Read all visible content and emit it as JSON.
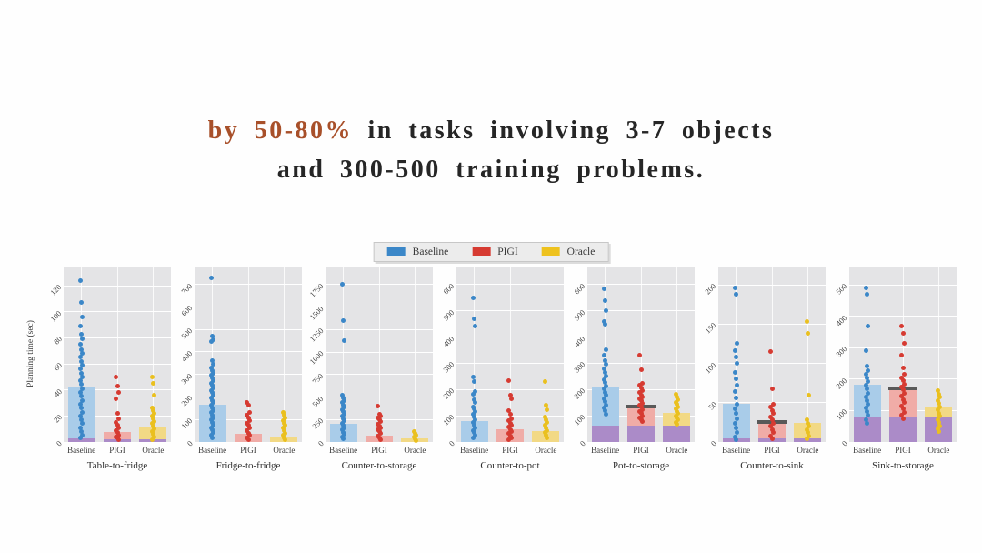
{
  "headline": {
    "accent": "by 50-80%",
    "rest_line1": "in tasks involving 3-7 objects",
    "line2": "and 300-500 training problems.",
    "accent_color": "#a8502a",
    "text_color": "#262626"
  },
  "legend": {
    "items": [
      {
        "label": "Baseline",
        "color": "#3b87c8"
      },
      {
        "label": "PIGI",
        "color": "#d63b32"
      },
      {
        "label": "Oracle",
        "color": "#eec21e"
      }
    ]
  },
  "colors": {
    "bar_fill": {
      "Baseline": "#a9cce9",
      "PIGI": "#f0aca7",
      "Oracle": "#f2d985"
    },
    "point": {
      "Baseline": "#3b87c8",
      "PIGI": "#d63b32",
      "Oracle": "#eac01f"
    },
    "purple_fill": "#ab8bc8",
    "cap": "#595959",
    "plot_bg": "#e4e4e6",
    "grid": "#ffffff"
  },
  "chart_data": [
    {
      "type": "bar",
      "title": "Table-to-fridge",
      "ylabel": "Planning time (sec)",
      "categories": [
        "Baseline",
        "PIGI",
        "Oracle"
      ],
      "yticks": [
        0,
        20,
        40,
        60,
        80,
        100,
        120
      ],
      "ylim": [
        0,
        134
      ],
      "series": [
        {
          "name": "Baseline",
          "bar": 42,
          "purple": 3,
          "cap": false,
          "points": [
            124,
            107,
            96,
            89,
            83,
            79,
            75,
            71,
            68,
            65,
            62,
            59,
            56,
            53,
            50,
            47,
            44,
            41,
            38,
            35,
            32,
            29,
            26,
            23,
            20,
            17,
            14,
            11,
            8,
            5,
            3
          ]
        },
        {
          "name": "PIGI",
          "bar": 8,
          "purple": 2,
          "cap": false,
          "points": [
            50,
            43,
            38,
            33,
            22,
            18,
            15,
            13,
            11,
            9,
            7,
            5,
            4,
            3,
            2
          ]
        },
        {
          "name": "Oracle",
          "bar": 12,
          "purple": 2,
          "cap": false,
          "points": [
            50,
            45,
            36,
            26,
            24,
            22,
            20,
            18,
            16,
            14,
            12,
            10,
            8,
            6,
            4,
            2
          ]
        }
      ]
    },
    {
      "type": "bar",
      "title": "Fridge-to-fridge",
      "ylabel": "",
      "categories": [
        "Baseline",
        "PIGI",
        "Oracle"
      ],
      "yticks": [
        0,
        100,
        200,
        300,
        400,
        500,
        600,
        700
      ],
      "ylim": [
        0,
        775
      ],
      "series": [
        {
          "name": "Baseline",
          "bar": 167,
          "purple": 0,
          "cap": false,
          "points": [
            730,
            470,
            455,
            445,
            360,
            345,
            330,
            318,
            306,
            295,
            284,
            273,
            262,
            251,
            240,
            229,
            218,
            207,
            196,
            185,
            174,
            163,
            152,
            141,
            130,
            119,
            108,
            97,
            86,
            75,
            64,
            53,
            42,
            31,
            20
          ]
        },
        {
          "name": "PIGI",
          "bar": 35,
          "purple": 0,
          "cap": false,
          "points": [
            175,
            163,
            130,
            118,
            106,
            95,
            84,
            73,
            62,
            51,
            40,
            30,
            20,
            10
          ]
        },
        {
          "name": "Oracle",
          "bar": 25,
          "purple": 0,
          "cap": false,
          "points": [
            130,
            118,
            106,
            95,
            84,
            73,
            62,
            51,
            40,
            30,
            20,
            10
          ]
        }
      ]
    },
    {
      "type": "bar",
      "title": "Counter-to-storage",
      "ylabel": "",
      "categories": [
        "Baseline",
        "PIGI",
        "Oracle"
      ],
      "yticks": [
        0,
        250,
        500,
        750,
        1000,
        1250,
        1500,
        1750
      ],
      "ylim": [
        0,
        1940
      ],
      "series": [
        {
          "name": "Baseline",
          "bar": 205,
          "purple": 0,
          "cap": false,
          "points": [
            1750,
            1350,
            1130,
            520,
            490,
            460,
            435,
            410,
            385,
            360,
            335,
            310,
            285,
            260,
            235,
            210,
            185,
            160,
            135,
            110,
            85,
            60,
            35
          ]
        },
        {
          "name": "PIGI",
          "bar": 75,
          "purple": 0,
          "cap": false,
          "points": [
            400,
            310,
            290,
            268,
            246,
            224,
            202,
            180,
            158,
            136,
            114,
            92,
            70,
            48,
            26
          ]
        },
        {
          "name": "Oracle",
          "bar": 40,
          "purple": 0,
          "cap": false,
          "points": [
            120,
            100,
            80,
            60,
            40,
            20
          ]
        }
      ]
    },
    {
      "type": "bar",
      "title": "Counter-to-pot",
      "ylabel": "",
      "categories": [
        "Baseline",
        "PIGI",
        "Oracle"
      ],
      "yticks": [
        0,
        100,
        200,
        300,
        400,
        500,
        600
      ],
      "ylim": [
        0,
        665
      ],
      "series": [
        {
          "name": "Baseline",
          "bar": 78,
          "purple": 0,
          "cap": false,
          "points": [
            550,
            470,
            440,
            249,
            232,
            192,
            181,
            160,
            150,
            135,
            125,
            115,
            105,
            95,
            85,
            75,
            65,
            55,
            45,
            35,
            25,
            15
          ]
        },
        {
          "name": "PIGI",
          "bar": 49,
          "purple": 0,
          "cap": false,
          "points": [
            235,
            180,
            163,
            118,
            106,
            89,
            80,
            72,
            64,
            56,
            48,
            40,
            32,
            24,
            16,
            8
          ]
        },
        {
          "name": "Oracle",
          "bar": 43,
          "purple": 0,
          "cap": false,
          "points": [
            232,
            141,
            123,
            95,
            85,
            75,
            65,
            55,
            45,
            35,
            25,
            15
          ]
        }
      ]
    },
    {
      "type": "bar",
      "title": "Pot-to-storage",
      "ylabel": "",
      "categories": [
        "Baseline",
        "PIGI",
        "Oracle"
      ],
      "yticks": [
        0,
        100,
        200,
        300,
        400,
        500,
        600
      ],
      "ylim": [
        0,
        665
      ],
      "series": [
        {
          "name": "Baseline",
          "bar": 210,
          "purple": 62,
          "cap": false,
          "points": [
            585,
            540,
            500,
            458,
            450,
            352,
            330,
            310,
            295,
            280,
            265,
            250,
            238,
            226,
            214,
            202,
            190,
            178,
            166,
            154,
            142,
            130,
            118,
            106
          ]
        },
        {
          "name": "PIGI",
          "bar": 135,
          "purple": 62,
          "cap": true,
          "points": [
            331,
            277,
            225,
            215,
            205,
            196,
            188,
            180,
            172,
            164,
            156,
            148,
            140,
            132,
            124,
            116,
            108,
            100,
            92,
            84,
            78
          ]
        },
        {
          "name": "Oracle",
          "bar": 110,
          "purple": 62,
          "cap": false,
          "points": [
            183,
            172,
            162,
            152,
            143,
            134,
            125,
            116,
            108,
            100,
            92,
            84,
            76,
            68
          ]
        }
      ]
    },
    {
      "type": "bar",
      "title": "Counter-to-sink",
      "ylabel": "",
      "categories": [
        "Baseline",
        "PIGI",
        "Oracle"
      ],
      "yticks": [
        0,
        50,
        100,
        150,
        200
      ],
      "ylim": [
        0,
        222
      ],
      "series": [
        {
          "name": "Baseline",
          "bar": 48,
          "purple": 5,
          "cap": false,
          "points": [
            196,
            188,
            126,
            116,
            108,
            100,
            88,
            80,
            72,
            64,
            56,
            48,
            42,
            36,
            30,
            24,
            18,
            12,
            6,
            3
          ]
        },
        {
          "name": "PIGI",
          "bar": 26,
          "purple": 5,
          "cap": true,
          "points": [
            115,
            68,
            48,
            44,
            40,
            36,
            32,
            28,
            24,
            20,
            16,
            12,
            8,
            4
          ]
        },
        {
          "name": "Oracle",
          "bar": 24,
          "purple": 5,
          "cap": false,
          "points": [
            153,
            138,
            60,
            28,
            24,
            20,
            16,
            12,
            8,
            4
          ]
        }
      ]
    },
    {
      "type": "bar",
      "title": "Sink-to-storage",
      "ylabel": "",
      "categories": [
        "Baseline",
        "PIGI",
        "Oracle"
      ],
      "yticks": [
        0,
        100,
        200,
        300,
        400,
        500
      ],
      "ylim": [
        0,
        555
      ],
      "series": [
        {
          "name": "Baseline",
          "bar": 183,
          "purple": 78,
          "cap": false,
          "points": [
            490,
            470,
            370,
            290,
            240,
            228,
            216,
            204,
            192,
            180,
            168,
            156,
            144,
            132,
            120,
            108,
            96,
            84,
            72,
            60
          ]
        },
        {
          "name": "PIGI",
          "bar": 170,
          "purple": 78,
          "cap": true,
          "points": [
            370,
            345,
            315,
            277,
            235,
            215,
            205,
            195,
            185,
            175,
            165,
            155,
            145,
            135,
            125,
            115,
            105,
            95,
            85,
            75
          ]
        },
        {
          "name": "Oracle",
          "bar": 112,
          "purple": 78,
          "cap": false,
          "points": [
            163,
            152,
            142,
            132,
            122,
            112,
            102,
            92,
            82,
            72,
            62,
            52,
            42,
            32
          ]
        }
      ]
    }
  ]
}
